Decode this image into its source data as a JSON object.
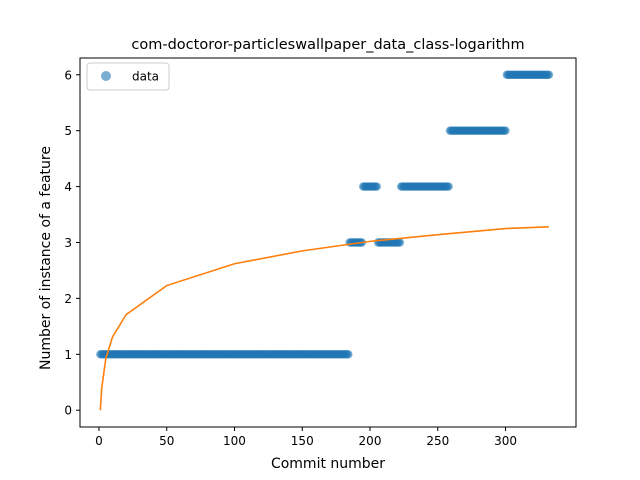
{
  "chart_data": {
    "type": "scatter",
    "title": "com-doctoror-particleswallpaper_data_class-logarithm",
    "xlabel": "Commit number",
    "ylabel": "Number of instance of a feature",
    "xlim": [
      -14,
      352
    ],
    "ylim": [
      -0.3,
      6.3
    ],
    "xticks": [
      0,
      50,
      100,
      150,
      200,
      250,
      300
    ],
    "yticks": [
      0,
      1,
      2,
      3,
      4,
      5,
      6
    ],
    "legend": {
      "position": "top-left",
      "entries": [
        "data"
      ]
    },
    "grid": false,
    "colors": {
      "data": "#1f77b4",
      "fit": "#ff7f0e"
    },
    "series": [
      {
        "name": "data",
        "kind": "scatter",
        "segments": [
          {
            "x_start": 1,
            "x_end": 184,
            "y": 1
          },
          {
            "x_start": 185,
            "x_end": 194,
            "y": 3
          },
          {
            "x_start": 195,
            "x_end": 205,
            "y": 4
          },
          {
            "x_start": 206,
            "x_end": 222,
            "y": 3
          },
          {
            "x_start": 223,
            "x_end": 258,
            "y": 4
          },
          {
            "x_start": 259,
            "x_end": 300,
            "y": 5
          },
          {
            "x_start": 301,
            "x_end": 332,
            "y": 6
          }
        ]
      },
      {
        "kind": "line",
        "function": "logarithm",
        "x": [
          1,
          2,
          5,
          10,
          20,
          50,
          100,
          150,
          200,
          250,
          300,
          332
        ],
        "y": [
          0,
          0.39,
          0.92,
          1.31,
          1.71,
          2.23,
          2.62,
          2.85,
          3.02,
          3.14,
          3.25,
          3.28
        ]
      }
    ]
  }
}
